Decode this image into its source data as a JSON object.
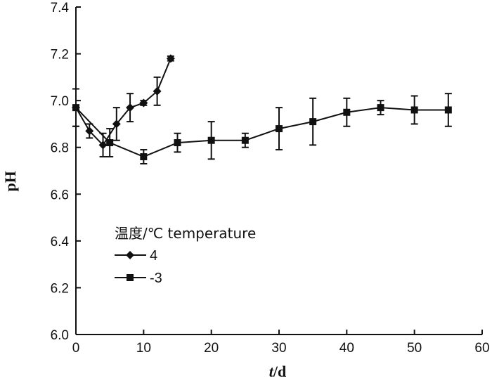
{
  "chart_data": {
    "type": "line",
    "title": "",
    "xlabel_italic": "t",
    "xlabel_rest": "/d",
    "ylabel": "pH",
    "xlim": [
      0,
      60
    ],
    "ylim": [
      6.0,
      7.4
    ],
    "xticks": [
      0,
      10,
      20,
      30,
      40,
      50,
      60
    ],
    "xtick_labels": [
      "0",
      "10",
      "20",
      "30",
      "40",
      "50",
      "60"
    ],
    "yticks": [
      6.0,
      6.2,
      6.4,
      6.6,
      6.8,
      7.0,
      7.2,
      7.4
    ],
    "ytick_labels": [
      "6.0",
      "6.2",
      "6.4",
      "6.6",
      "6.8",
      "7.0",
      "7.2",
      "7.4"
    ],
    "grid": false,
    "legend": {
      "title": "温度/℃ temperature",
      "position": "middle-left"
    },
    "series": [
      {
        "name": "4",
        "marker": "diamond",
        "x": [
          0,
          2,
          4,
          6,
          8,
          10,
          12,
          14
        ],
        "y": [
          6.97,
          6.87,
          6.81,
          6.9,
          6.97,
          6.99,
          7.04,
          7.18
        ],
        "err": [
          0.08,
          0.03,
          0.05,
          0.07,
          0.06,
          0.01,
          0.06,
          0.01
        ]
      },
      {
        "name": "-3",
        "marker": "square",
        "x": [
          0,
          5,
          10,
          15,
          20,
          25,
          30,
          35,
          40,
          45,
          50,
          55
        ],
        "y": [
          6.97,
          6.82,
          6.76,
          6.82,
          6.83,
          6.83,
          6.88,
          6.91,
          6.95,
          6.97,
          6.96,
          6.96
        ],
        "err": [
          0.08,
          0.06,
          0.03,
          0.04,
          0.08,
          0.03,
          0.09,
          0.1,
          0.06,
          0.03,
          0.06,
          0.07
        ]
      }
    ]
  },
  "colors": {
    "ink": "#111111",
    "background": "#ffffff"
  }
}
